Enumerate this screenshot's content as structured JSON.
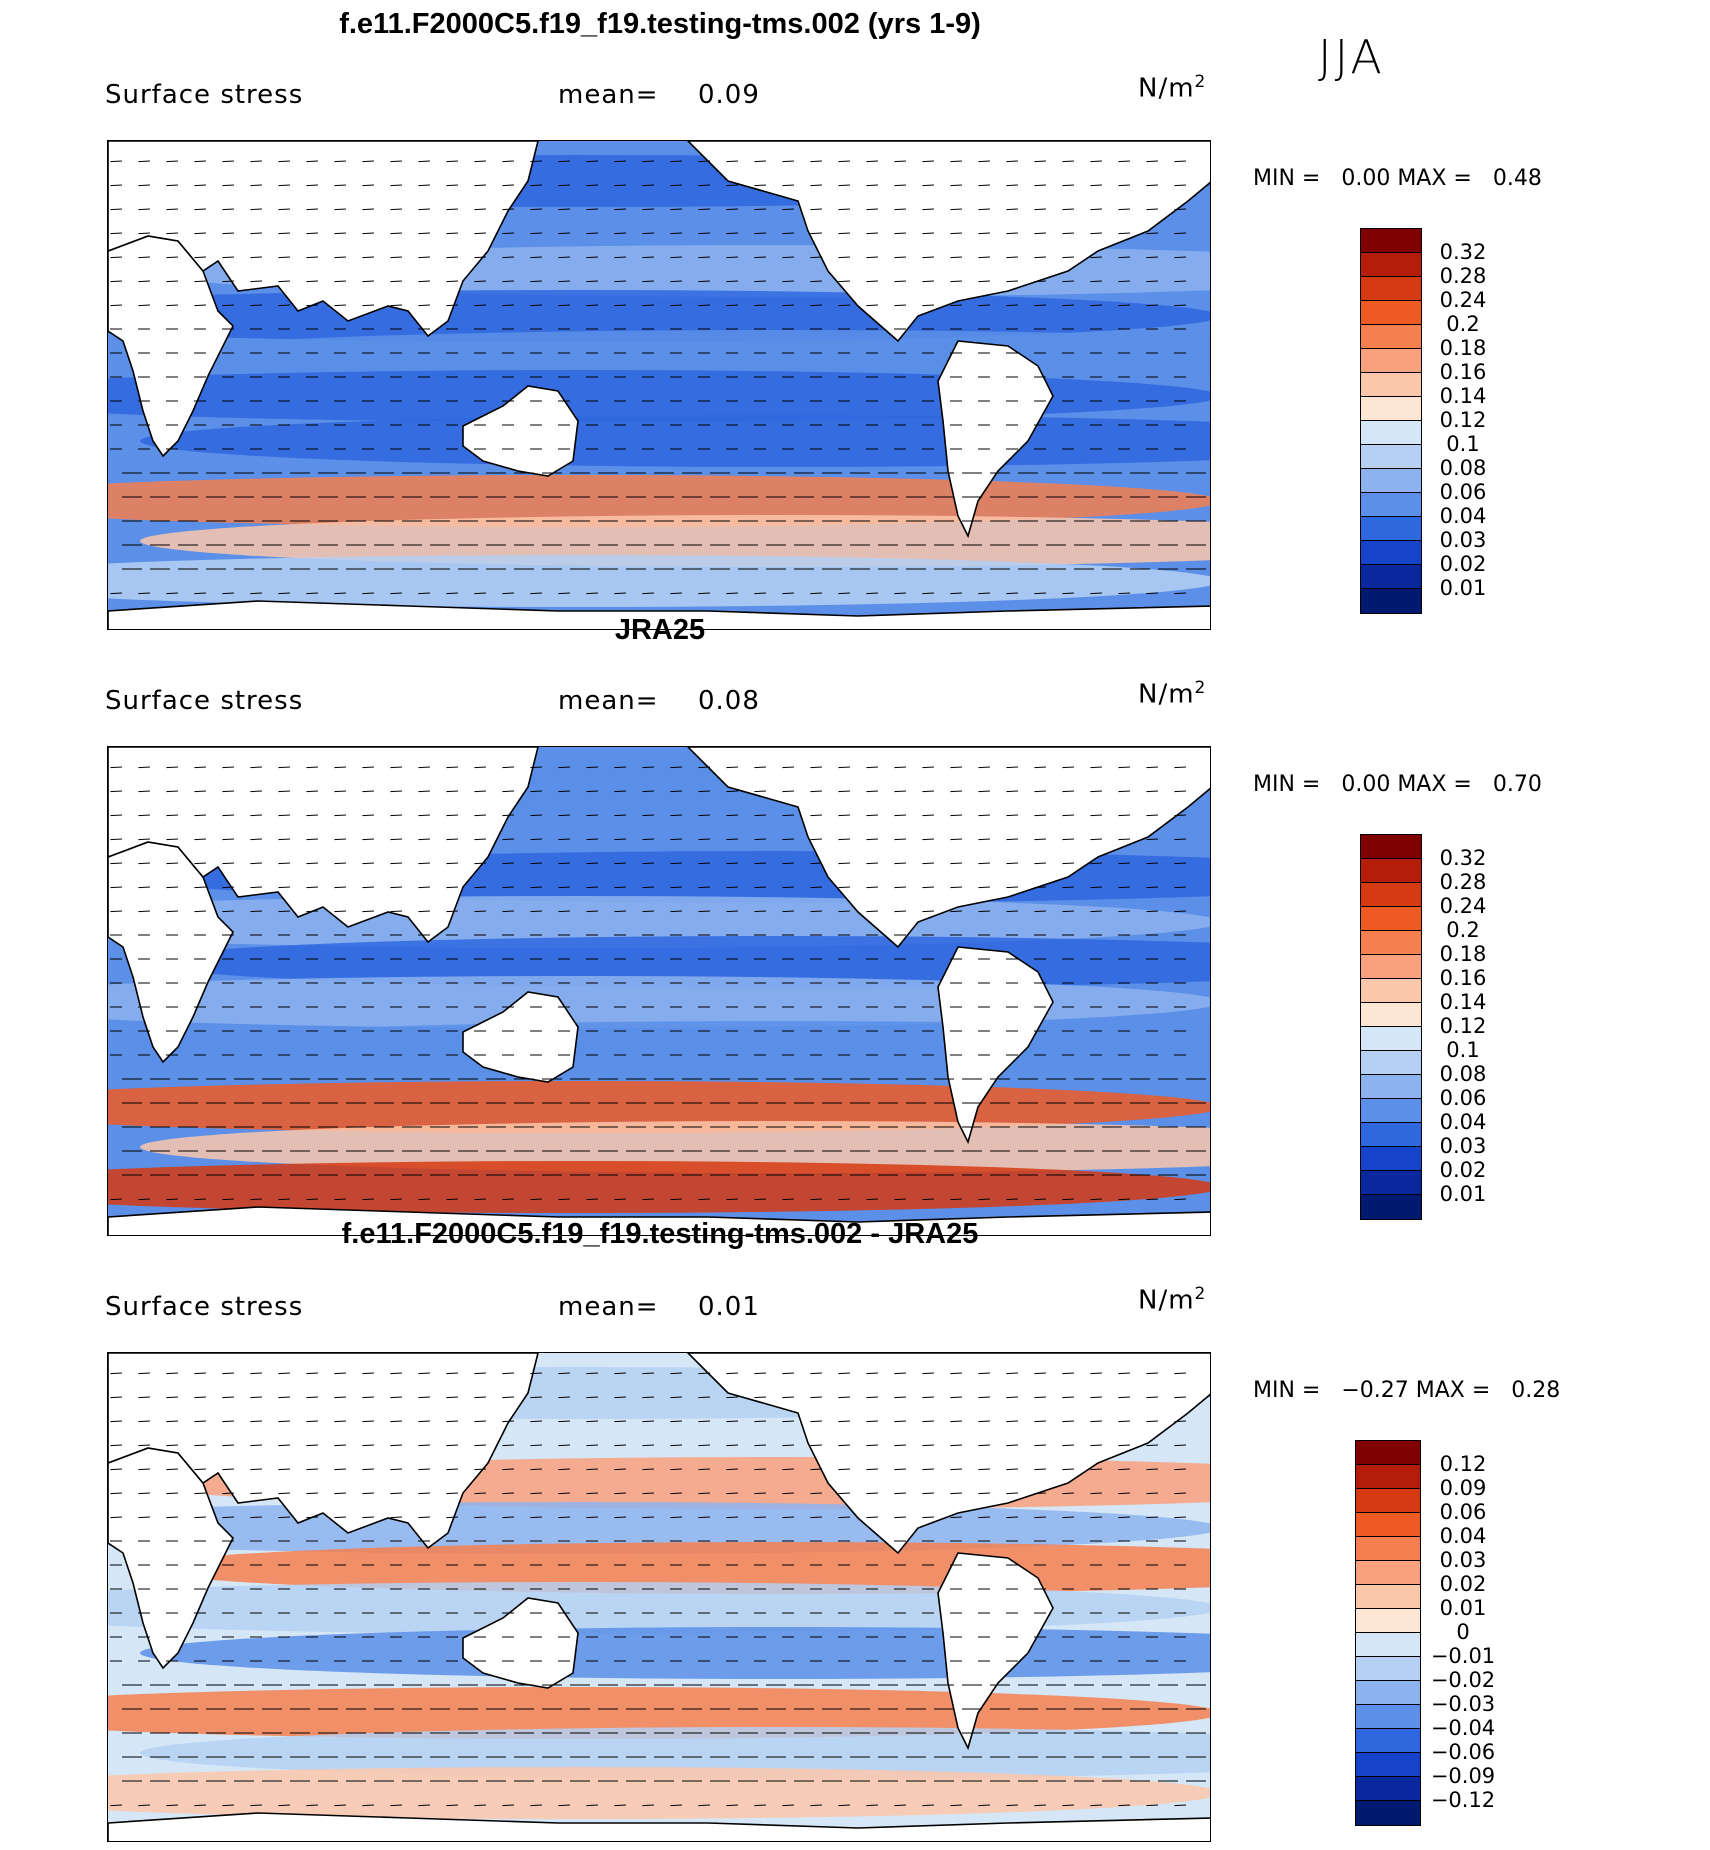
{
  "season": "JJA",
  "units_base": "N/m",
  "units_sup": "2",
  "panels": [
    {
      "title": "f.e11.F2000C5.f19_f19.testing-tms.002 (yrs 1-9)",
      "variable": "Surface stress",
      "mean_label": "mean=",
      "mean_value": "0.09",
      "min_label": "MIN =",
      "min_value": "0.00",
      "max_label": "MAX =",
      "max_value": "0.48",
      "colorbar": {
        "labels": [
          "0.32",
          "0.28",
          "0.24",
          "0.2",
          "0.18",
          "0.16",
          "0.14",
          "0.12",
          "0.1",
          "0.08",
          "0.06",
          "0.04",
          "0.03",
          "0.02",
          "0.01"
        ],
        "colors": [
          "#7f0000",
          "#b51d0b",
          "#d63a12",
          "#ee5a23",
          "#f57f4f",
          "#f9a07c",
          "#fbc7aa",
          "#fde7d4",
          "#d5e6f6",
          "#b5d0f2",
          "#8db3ef",
          "#5b8fe8",
          "#2f67df",
          "#1543c9",
          "#0a289e",
          "#001a70"
        ]
      }
    },
    {
      "title": "JRA25",
      "variable": "Surface stress",
      "mean_label": "mean=",
      "mean_value": "0.08",
      "min_label": "MIN =",
      "min_value": "0.00",
      "max_label": "MAX =",
      "max_value": "0.70",
      "colorbar": {
        "labels": [
          "0.32",
          "0.28",
          "0.24",
          "0.2",
          "0.18",
          "0.16",
          "0.14",
          "0.12",
          "0.1",
          "0.08",
          "0.06",
          "0.04",
          "0.03",
          "0.02",
          "0.01"
        ],
        "colors": [
          "#7f0000",
          "#b51d0b",
          "#d63a12",
          "#ee5a23",
          "#f57f4f",
          "#f9a07c",
          "#fbc7aa",
          "#fde7d4",
          "#d5e6f6",
          "#b5d0f2",
          "#8db3ef",
          "#5b8fe8",
          "#2f67df",
          "#1543c9",
          "#0a289e",
          "#001a70"
        ]
      }
    },
    {
      "title": "f.e11.F2000C5.f19_f19.testing-tms.002 - JRA25",
      "variable": "Surface stress",
      "mean_label": "mean=",
      "mean_value": "0.01",
      "min_label": "MIN =",
      "min_value": "−0.27",
      "max_label": "MAX =",
      "max_value": "0.28",
      "colorbar": {
        "labels": [
          "0.12",
          "0.09",
          "0.06",
          "0.04",
          "0.03",
          "0.02",
          "0.01",
          "0",
          "−0.01",
          "−0.02",
          "−0.03",
          "−0.04",
          "−0.06",
          "−0.09",
          "−0.12"
        ],
        "colors": [
          "#7f0000",
          "#b51d0b",
          "#d63a12",
          "#ee5a23",
          "#f57f4f",
          "#f9a07c",
          "#fbc7aa",
          "#fde7d4",
          "#d5e6f6",
          "#b5d0f2",
          "#8db3ef",
          "#5b8fe8",
          "#2f67df",
          "#1543c9",
          "#0a289e",
          "#001a70"
        ]
      }
    }
  ]
}
